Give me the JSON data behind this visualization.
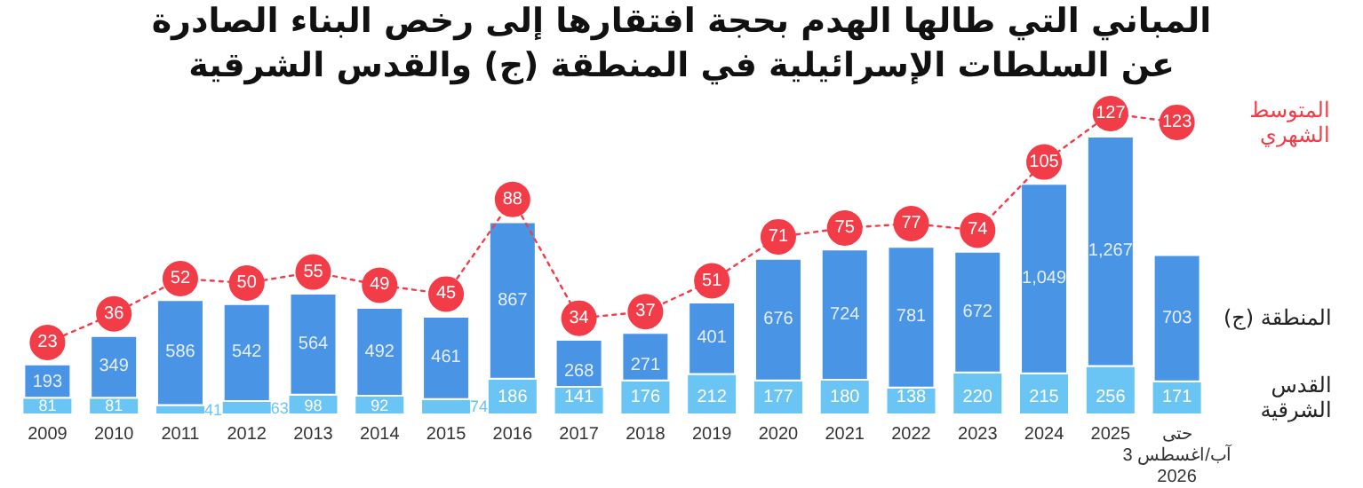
{
  "chart_data": {
    "type": "bar",
    "title": "المباني التي طالها الهدم بحجة افتقارها إلى رخص البناء الصادرة\nعن السلطات الإسرائيلية في المنطقة (ج) والقدس الشرقية",
    "categories": [
      "2009",
      "2010",
      "2011",
      "2012",
      "2013",
      "2014",
      "2015",
      "2016",
      "2017",
      "2018",
      "2019",
      "2020",
      "2021",
      "2022",
      "2023",
      "2024",
      "2025",
      "حتى\n3 آب/اغسطس\n2026"
    ],
    "stacked": true,
    "legend": false,
    "marker": "circle",
    "line_style": "dotted",
    "series": [
      {
        "name": "القدس الشرقية",
        "color": "#6ac5f5",
        "values": [
          81,
          81,
          41,
          63,
          98,
          92,
          74,
          186,
          141,
          176,
          212,
          177,
          180,
          138,
          220,
          215,
          256,
          171
        ],
        "value_labels": [
          "81",
          "81",
          "41",
          "63",
          "98",
          "92",
          "74",
          "186",
          "141",
          "176",
          "212",
          "177",
          "180",
          "138",
          "220",
          "215",
          "256",
          "171"
        ]
      },
      {
        "name": "المنطقة (ج)",
        "color": "#4a94e6",
        "values": [
          193,
          349,
          586,
          542,
          564,
          492,
          461,
          867,
          268,
          271,
          401,
          676,
          724,
          781,
          672,
          1049,
          1267,
          703
        ],
        "value_labels": [
          "193",
          "349",
          "586",
          "542",
          "564",
          "492",
          "461",
          "867",
          "268",
          "271",
          "401",
          "676",
          "724",
          "781",
          "672",
          "1,049",
          "1,267",
          "703"
        ]
      },
      {
        "name": "المتوسط الشهري",
        "type": "line",
        "axis": "y2",
        "color": "#f23c48",
        "values": [
          23,
          36,
          52,
          50,
          55,
          49,
          45,
          88,
          34,
          37,
          51,
          71,
          75,
          77,
          74,
          105,
          127,
          123
        ],
        "value_labels": [
          "23",
          "36",
          "52",
          "50",
          "55",
          "49",
          "45",
          "88",
          "34",
          "37",
          "51",
          "71",
          "75",
          "77",
          "74",
          "105",
          "127",
          "123"
        ]
      }
    ]
  }
}
